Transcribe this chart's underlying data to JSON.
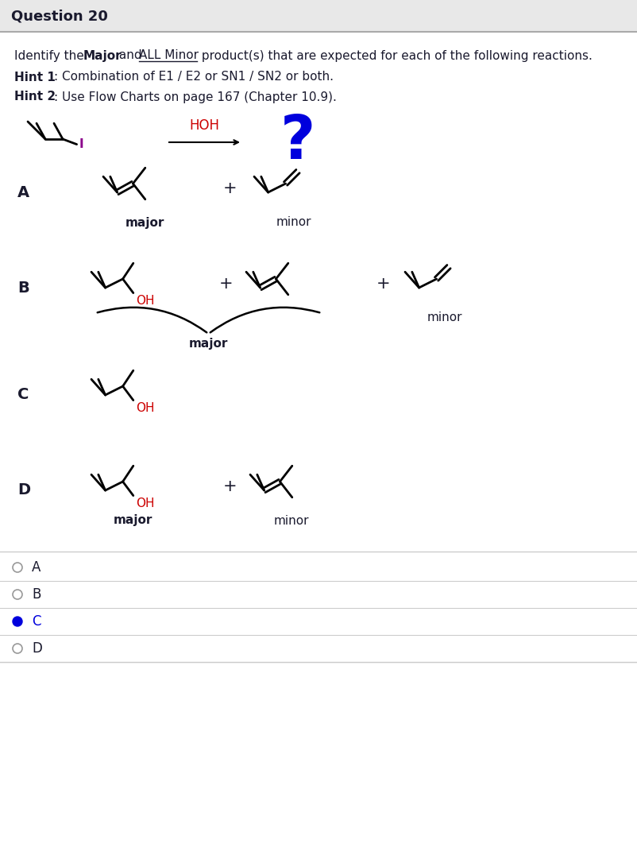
{
  "title": "Question 20",
  "title_bg": "#e8e8e8",
  "bg_color": "#ffffff",
  "text_color": "#1a1a2e",
  "red_color": "#cc0000",
  "blue_color": "#0000dd",
  "header_line_color": "#bbbbbb",
  "reagent": "HOH",
  "option_selected": "C",
  "options": [
    "A",
    "B",
    "C",
    "D"
  ]
}
